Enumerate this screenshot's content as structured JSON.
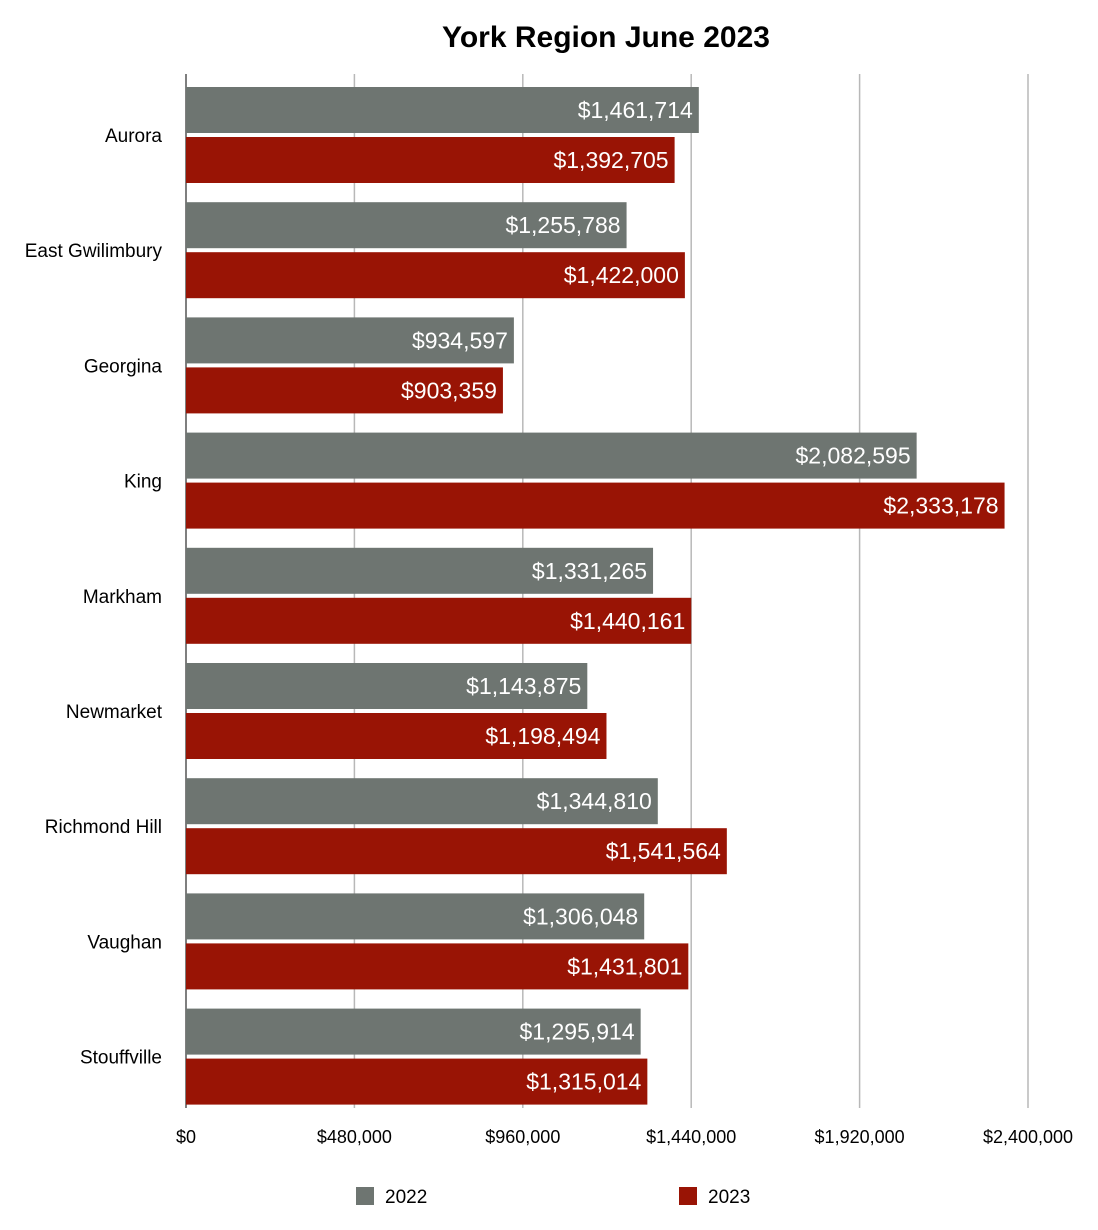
{
  "chart_data": {
    "type": "bar",
    "orientation": "horizontal",
    "title": "York Region June 2023",
    "xlabel": "",
    "ylabel": "",
    "categories": [
      "Aurora",
      "East Gwilimbury",
      "Georgina",
      "King",
      "Markham",
      "Newmarket",
      "Richmond Hill",
      "Vaughan",
      "Stouffville"
    ],
    "series": [
      {
        "name": "2022",
        "color": "#6e7571",
        "values": [
          1461714,
          1255788,
          934597,
          2082595,
          1331265,
          1143875,
          1344810,
          1306048,
          1295914
        ],
        "labels": [
          "$1,461,714",
          "$1,255,788",
          "$934,597",
          "$2,082,595",
          "$1,331,265",
          "$1,143,875",
          "$1,344,810",
          "$1,306,048",
          "$1,295,914"
        ]
      },
      {
        "name": "2023",
        "color": "#991405",
        "values": [
          1392705,
          1422000,
          903359,
          2333178,
          1440161,
          1198494,
          1541564,
          1431801,
          1315014
        ],
        "labels": [
          "$1,392,705",
          "$1,422,000",
          "$903,359",
          "$2,333,178",
          "$1,440,161",
          "$1,198,494",
          "$1,541,564",
          "$1,431,801",
          "$1,315,014"
        ]
      }
    ],
    "xlim": [
      0,
      2400000
    ],
    "ticks": [
      0,
      480000,
      960000,
      1440000,
      1920000,
      2400000
    ],
    "tick_labels": [
      "$0",
      "$480,000",
      "$960,000",
      "$1,440,000",
      "$1,920,000",
      "$2,400,000"
    ],
    "grid": true,
    "legend": "bottom",
    "data_labels": true
  }
}
